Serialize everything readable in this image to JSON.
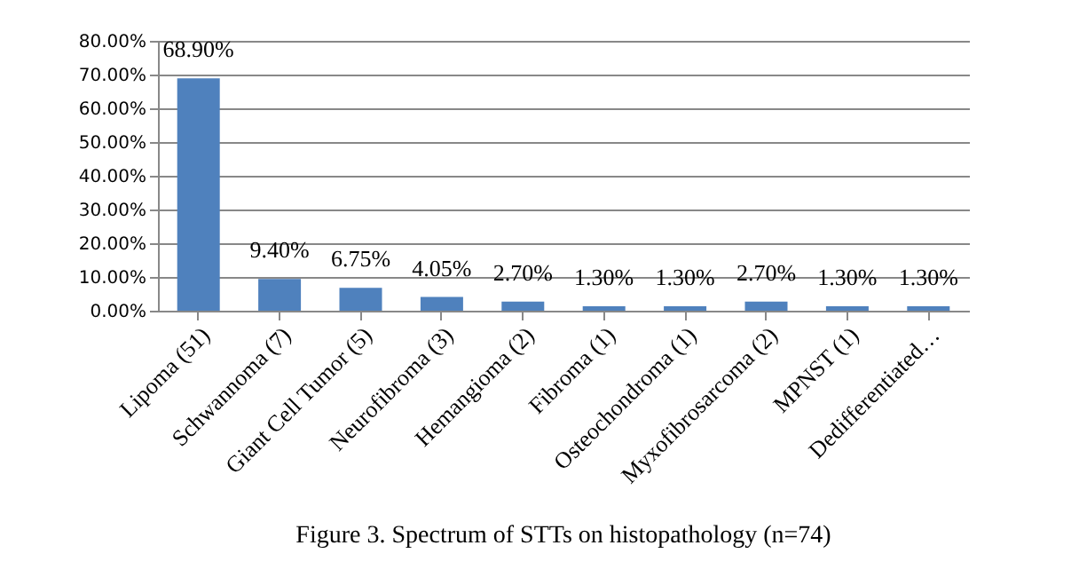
{
  "chart_data": {
    "type": "bar",
    "title": "Figure 3. Spectrum of STTs on histopathology (n=74)",
    "categories": [
      "Lipoma (51)",
      "Schwannoma (7)",
      "Giant Cell Tumor (5)",
      "Neurofibroma (3)",
      "Hemangioma (2)",
      "Fibroma (1)",
      "Osteochondroma (1)",
      "Myxofibrosarcoma (2)",
      "MPNST (1)",
      "Dedifferentiated…"
    ],
    "values": [
      68.9,
      9.4,
      6.75,
      4.05,
      2.7,
      1.3,
      1.3,
      2.7,
      1.3,
      1.3
    ],
    "value_labels": [
      "68.90%",
      "9.40%",
      "6.75%",
      "4.05%",
      "2.70%",
      "1.30%",
      "1.30%",
      "2.70%",
      "1.30%",
      "1.30%"
    ],
    "color": "#4f81bd",
    "ylim": [
      0,
      80
    ],
    "yticks": [
      {
        "value": 0,
        "label": "0.00%"
      },
      {
        "value": 10,
        "label": "10.00%"
      },
      {
        "value": 20,
        "label": "20.00%"
      },
      {
        "value": 30,
        "label": "30.00%"
      },
      {
        "value": 40,
        "label": "40.00%"
      },
      {
        "value": 50,
        "label": "50.00%"
      },
      {
        "value": 60,
        "label": "60.00%"
      },
      {
        "value": 70,
        "label": "70.00%"
      },
      {
        "value": 80,
        "label": "80.00%"
      }
    ],
    "grid": "y"
  }
}
